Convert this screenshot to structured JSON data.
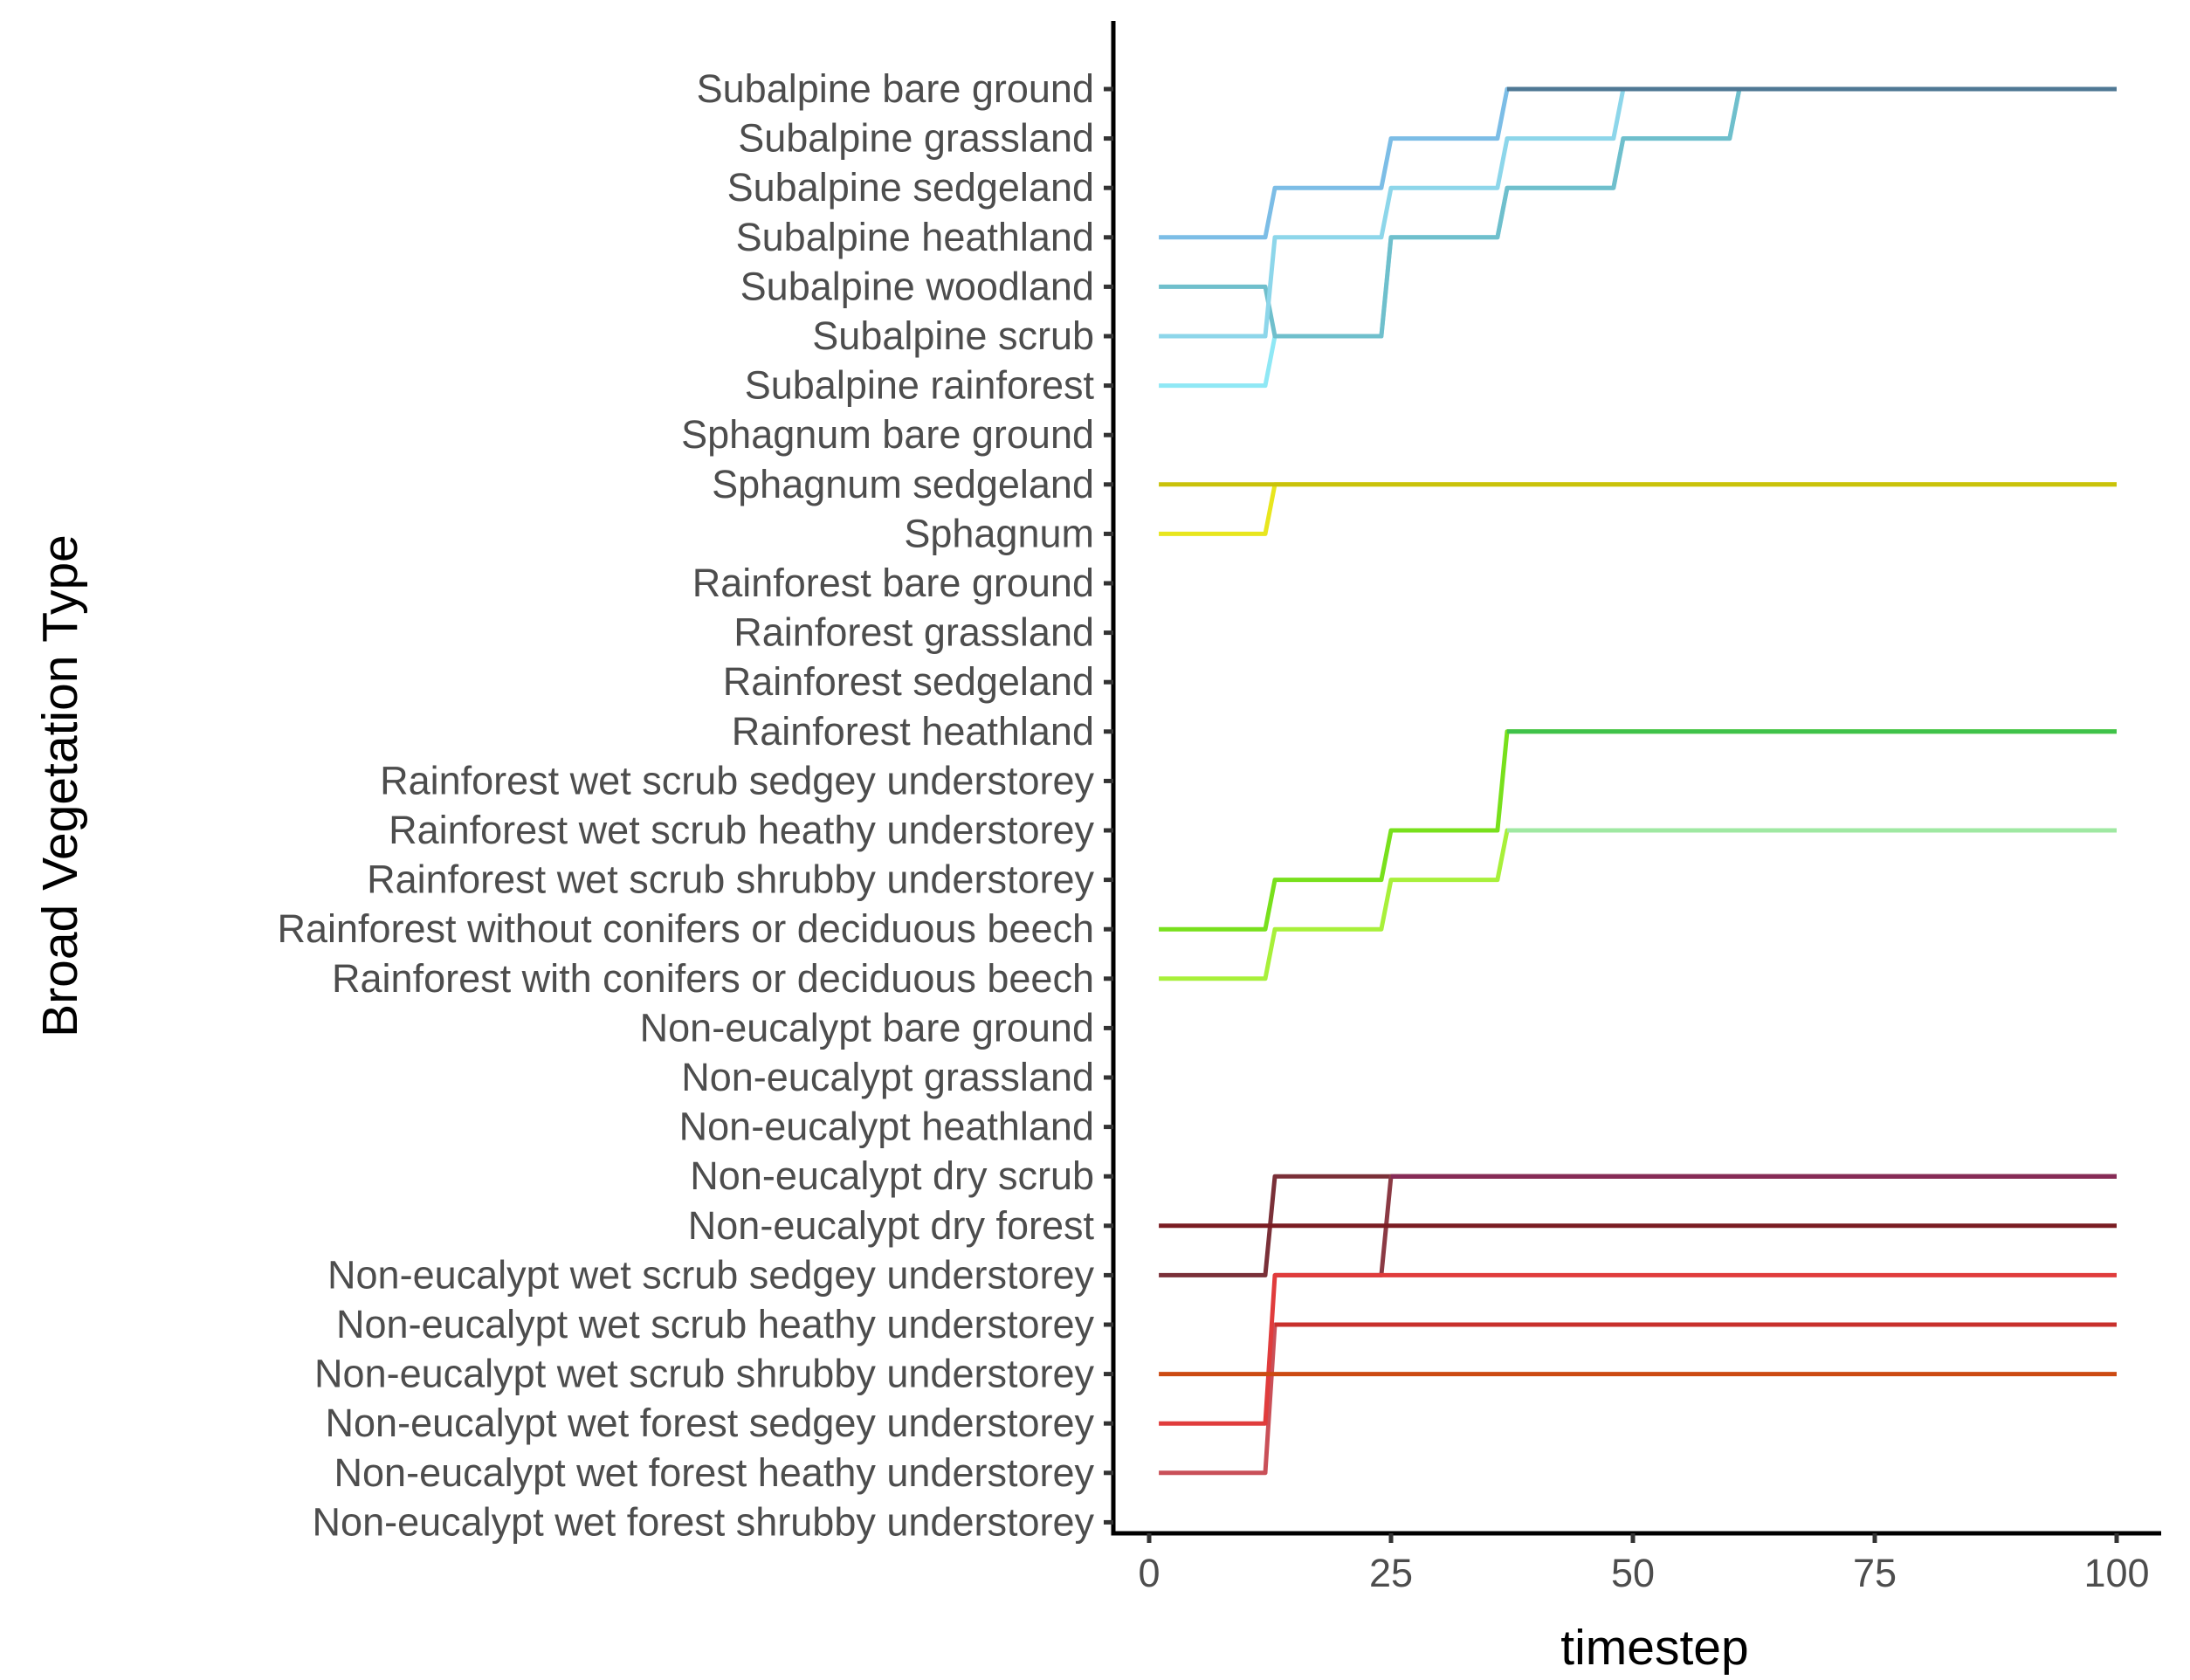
{
  "chart_data": {
    "type": "line",
    "title": "",
    "xlabel": "timestep",
    "ylabel": "Broad Vegetation Type",
    "xlim": [
      -3.5,
      105
    ],
    "xticks": [
      0,
      25,
      50,
      75,
      100
    ],
    "grid": false,
    "legend": "none",
    "categories": [
      "Subalpine bare ground",
      "Subalpine grassland",
      "Subalpine sedgeland",
      "Subalpine heathland",
      "Subalpine woodland",
      "Subalpine scrub",
      "Subalpine rainforest",
      "Sphagnum bare ground",
      "Sphagnum sedgeland",
      "Sphagnum",
      "Rainforest bare ground",
      "Rainforest grassland",
      "Rainforest sedgeland",
      "Rainforest heathland",
      "Rainforest wet scrub sedgey understorey",
      "Rainforest wet scrub heathy understorey",
      "Rainforest wet scrub shrubby understorey",
      "Rainforest without conifers or deciduous beech",
      "Rainforest with conifers or deciduous beech",
      "Non-eucalypt bare ground",
      "Non-eucalypt grassland",
      "Non-eucalypt heathland",
      "Non-eucalypt dry scrub",
      "Non-eucalypt dry forest",
      "Non-eucalypt wet scrub sedgey understorey",
      "Non-eucalypt wet scrub heathy understorey",
      "Non-eucalypt wet scrub shrubby understorey",
      "Non-eucalypt wet forest sedgey understorey",
      "Non-eucalypt wet forest heathy understorey",
      "Non-eucalypt wet forest shrubby understorey"
    ],
    "series": [
      {
        "name": "Subalpine rainforest",
        "color": "#8fe8f5",
        "x": [
          1,
          12,
          13,
          24,
          25,
          36,
          37,
          48,
          49,
          60,
          61,
          100
        ],
        "y": [
          "Subalpine rainforest",
          "Subalpine rainforest",
          "Subalpine scrub",
          "Subalpine scrub",
          "Subalpine heathland",
          "Subalpine heathland",
          "Subalpine sedgeland",
          "Subalpine sedgeland",
          "Subalpine grassland",
          "Subalpine grassland",
          "Subalpine bare ground",
          "Subalpine bare ground"
        ]
      },
      {
        "name": "Subalpine woodland",
        "color": "#6fbfcc",
        "x": [
          1,
          12,
          13,
          24,
          25,
          36,
          37,
          48,
          49,
          60,
          61,
          100
        ],
        "y": [
          "Subalpine woodland",
          "Subalpine woodland",
          "Subalpine scrub",
          "Subalpine scrub",
          "Subalpine heathland",
          "Subalpine heathland",
          "Subalpine sedgeland",
          "Subalpine sedgeland",
          "Subalpine grassland",
          "Subalpine grassland",
          "Subalpine bare ground",
          "Subalpine bare ground"
        ]
      },
      {
        "name": "Subalpine scrub",
        "color": "#8dd6ea",
        "x": [
          1,
          12,
          13,
          24,
          25,
          36,
          37,
          48,
          49,
          100
        ],
        "y": [
          "Subalpine scrub",
          "Subalpine scrub",
          "Subalpine heathland",
          "Subalpine heathland",
          "Subalpine sedgeland",
          "Subalpine sedgeland",
          "Subalpine grassland",
          "Subalpine grassland",
          "Subalpine bare ground",
          "Subalpine bare ground"
        ]
      },
      {
        "name": "Subalpine heathland",
        "color": "#7cbde6",
        "x": [
          1,
          12,
          13,
          24,
          25,
          36,
          37,
          100
        ],
        "y": [
          "Subalpine heathland",
          "Subalpine heathland",
          "Subalpine sedgeland",
          "Subalpine sedgeland",
          "Subalpine grassland",
          "Subalpine grassland",
          "Subalpine bare ground",
          "Subalpine bare ground"
        ]
      },
      {
        "name": "Subalpine bare ground",
        "color": "#4f7894",
        "x": [
          37,
          100
        ],
        "y": [
          "Subalpine bare ground",
          "Subalpine bare ground"
        ]
      },
      {
        "name": "Sphagnum",
        "color": "#e8e61e",
        "x": [
          1,
          12,
          13,
          100
        ],
        "y": [
          "Sphagnum",
          "Sphagnum",
          "Sphagnum sedgeland",
          "Sphagnum sedgeland"
        ]
      },
      {
        "name": "Sphagnum sedgeland",
        "color": "#c9c20a",
        "x": [
          1,
          100
        ],
        "y": [
          "Sphagnum sedgeland",
          "Sphagnum sedgeland"
        ]
      },
      {
        "name": "Rainforest with conifers or deciduous beech",
        "color": "#a8f03a",
        "x": [
          1,
          12,
          13,
          24,
          25,
          36,
          37,
          100
        ],
        "y": [
          "Rainforest with conifers or deciduous beech",
          "Rainforest with conifers or deciduous beech",
          "Rainforest without conifers or deciduous beech",
          "Rainforest without conifers or deciduous beech",
          "Rainforest wet scrub shrubby understorey",
          "Rainforest wet scrub shrubby understorey",
          "Rainforest wet scrub heathy understorey",
          "Rainforest wet scrub heathy understorey"
        ]
      },
      {
        "name": "Rainforest without conifers or deciduous beech",
        "color": "#78e01c",
        "x": [
          1,
          12,
          13,
          24,
          25,
          36,
          37,
          100
        ],
        "y": [
          "Rainforest without conifers or deciduous beech",
          "Rainforest without conifers or deciduous beech",
          "Rainforest wet scrub shrubby understorey",
          "Rainforest wet scrub shrubby understorey",
          "Rainforest wet scrub heathy understorey",
          "Rainforest wet scrub heathy understorey",
          "Rainforest heathland",
          "Rainforest heathland"
        ]
      },
      {
        "name": "Rainforest wet scrub heathy understorey",
        "color": "#9fe8a2",
        "x": [
          37,
          100
        ],
        "y": [
          "Rainforest wet scrub heathy understorey",
          "Rainforest wet scrub heathy understorey"
        ]
      },
      {
        "name": "Rainforest heathland",
        "color": "#3fc24a",
        "x": [
          37,
          100
        ],
        "y": [
          "Rainforest heathland",
          "Rainforest heathland"
        ]
      },
      {
        "name": "Non-eucalypt wet scrub sedgey understorey",
        "color": "#7a3038",
        "x": [
          1,
          12,
          13,
          100
        ],
        "y": [
          "Non-eucalypt wet scrub sedgey understorey",
          "Non-eucalypt wet scrub sedgey understorey",
          "Non-eucalypt dry scrub",
          "Non-eucalypt dry scrub"
        ]
      },
      {
        "name": "Non-eucalypt wet scrub sedgey understorey (2)",
        "color": "#8b3a44",
        "x": [
          13,
          24,
          25,
          100
        ],
        "y": [
          "Non-eucalypt wet scrub sedgey understorey",
          "Non-eucalypt wet scrub sedgey understorey",
          "Non-eucalypt dry scrub",
          "Non-eucalypt dry scrub"
        ]
      },
      {
        "name": "Non-eucalypt dry scrub",
        "color": "#862b57",
        "x": [
          25,
          100
        ],
        "y": [
          "Non-eucalypt dry scrub",
          "Non-eucalypt dry scrub"
        ]
      },
      {
        "name": "Non-eucalypt dry forest",
        "color": "#7a1c22",
        "x": [
          1,
          100
        ],
        "y": [
          "Non-eucalypt dry forest",
          "Non-eucalypt dry forest"
        ]
      },
      {
        "name": "Non-eucalypt wet forest heathy understorey",
        "color": "#c95058",
        "x": [
          1,
          12,
          13,
          100
        ],
        "y": [
          "Non-eucalypt wet forest heathy understorey",
          "Non-eucalypt wet forest heathy understorey",
          "Non-eucalypt wet scrub heathy understorey",
          "Non-eucalypt wet scrub heathy understorey"
        ]
      },
      {
        "name": "Non-eucalypt wet forest sedgey understorey",
        "color": "#e03c3c",
        "x": [
          1,
          12,
          13,
          100
        ],
        "y": [
          "Non-eucalypt wet forest sedgey understorey",
          "Non-eucalypt wet forest sedgey understorey",
          "Non-eucalypt wet scrub sedgey understorey",
          "Non-eucalypt wet scrub sedgey understorey"
        ]
      },
      {
        "name": "Non-eucalypt wet scrub heathy understorey",
        "color": "#c8302c",
        "x": [
          13,
          100
        ],
        "y": [
          "Non-eucalypt wet scrub heathy understorey",
          "Non-eucalypt wet scrub heathy understorey"
        ]
      },
      {
        "name": "Non-eucalypt wet scrub shrubby understorey",
        "color": "#cc4a12",
        "x": [
          1,
          100
        ],
        "y": [
          "Non-eucalypt wet scrub shrubby understorey",
          "Non-eucalypt wet scrub shrubby understorey"
        ]
      }
    ]
  }
}
